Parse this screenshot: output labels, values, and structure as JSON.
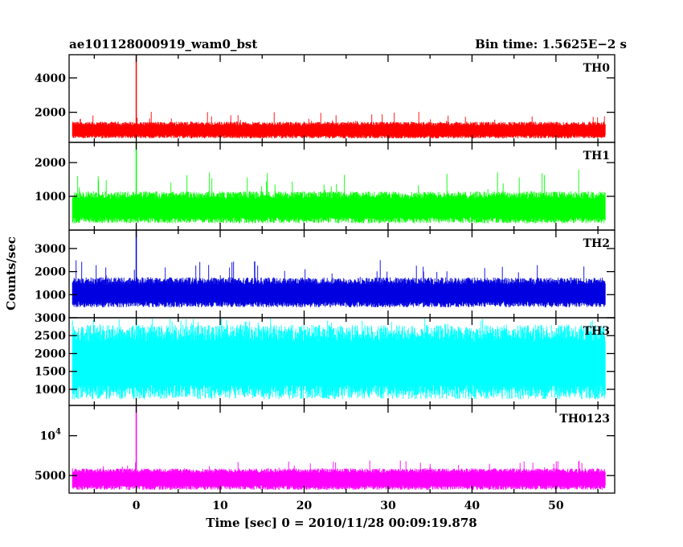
{
  "chart_data": {
    "type": "line",
    "title": "ae101128000919_wam0_bst",
    "subtitle": "Bin time: 1.5625E−2 s",
    "xlabel": "Time [sec] 0 = 2010/11/28 00:09:19.878",
    "ylabel": "Counts/sec",
    "xlim": [
      -8,
      57
    ],
    "x_ticks": [
      0,
      10,
      20,
      30,
      40,
      50
    ],
    "x_data_range": [
      -7.6,
      55.9
    ],
    "spike_at_x": 0,
    "panels": [
      {
        "name": "TH0",
        "color": "#ff0000",
        "ylim": [
          250,
          5350
        ],
        "y_ticks": [
          {
            "v": 2000,
            "t": "2000"
          },
          {
            "v": 4000,
            "t": "4000"
          }
        ],
        "band_low": 480,
        "band_high": 1450,
        "mid": 950,
        "peak_high": 2050,
        "spike_top": 5350
      },
      {
        "name": "TH1",
        "color": "#00ff00",
        "ylim": [
          0,
          2600
        ],
        "y_ticks": [
          {
            "v": 1000,
            "t": "1000"
          },
          {
            "v": 2000,
            "t": "2000"
          }
        ],
        "band_low": 200,
        "band_high": 1150,
        "mid": 650,
        "peak_high": 1800,
        "spike_top": 2600
      },
      {
        "name": "TH2",
        "color": "#0000e0",
        "ylim": [
          0,
          3800
        ],
        "y_ticks": [
          {
            "v": 1000,
            "t": "1000"
          },
          {
            "v": 2000,
            "t": "2000"
          },
          {
            "v": 3000,
            "t": "3000"
          }
        ],
        "band_low": 450,
        "band_high": 1750,
        "mid": 1050,
        "peak_high": 2500,
        "spike_top": 3800
      },
      {
        "name": "TH3",
        "color": "#00ffff",
        "ylim": [
          550,
          3000
        ],
        "y_ticks": [
          {
            "v": 1000,
            "t": "1000"
          },
          {
            "v": 1500,
            "t": "1500"
          },
          {
            "v": 2000,
            "t": "2000"
          },
          {
            "v": 2500,
            "t": "2500"
          },
          {
            "v": 3000,
            "t": "3000"
          }
        ],
        "band_low": 720,
        "band_high": 2800,
        "mid": 1750,
        "peak_high": 3000,
        "spike_top": 3000
      },
      {
        "name": "TH0123",
        "color": "#ff00ff",
        "ylim": [
          2800,
          13800
        ],
        "y_ticks": [
          {
            "v": 5000,
            "t": "5000"
          },
          {
            "v": 10000,
            "t": "10",
            "sup": "4"
          }
        ],
        "band_low": 3200,
        "band_high": 5900,
        "mid": 4600,
        "peak_high": 6900,
        "spike_top": 13800
      }
    ]
  }
}
